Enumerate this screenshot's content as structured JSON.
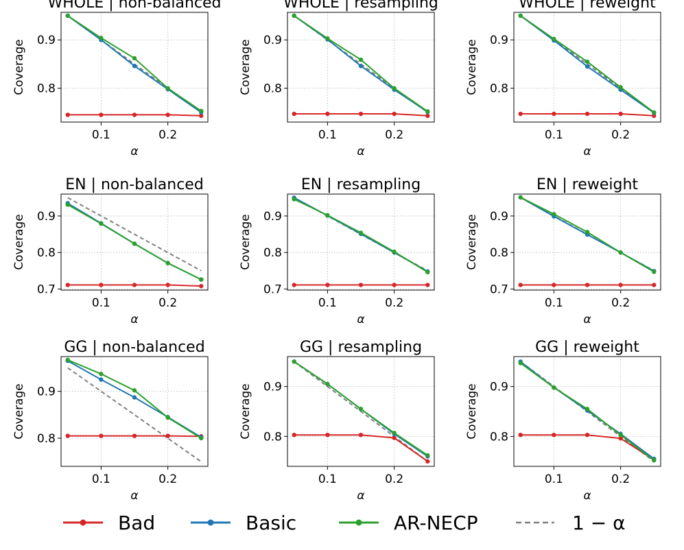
{
  "figure": {
    "legend": [
      {
        "key": "bad",
        "label": "Bad",
        "color": "#d62728",
        "style": "solid-marker"
      },
      {
        "key": "basic",
        "label": "Basic",
        "color": "#1f77b4",
        "style": "solid-marker"
      },
      {
        "key": "ar_necp",
        "label": "AR-NECP",
        "color": "#2ca02c",
        "style": "solid-marker"
      },
      {
        "key": "one_minus_alpha",
        "label": "1 − α",
        "color": "#7f7f7f",
        "style": "dashed"
      }
    ],
    "legend_placement": "bottom-center",
    "grid": "dotted"
  },
  "chart_data": [
    {
      "type": "line",
      "title": "WHOLE | non-balanced",
      "xlabel": "α",
      "ylabel": "Coverage",
      "x": [
        0.05,
        0.1,
        0.15,
        0.2,
        0.25
      ],
      "xlim": [
        0.04,
        0.26
      ],
      "ylim": [
        0.73,
        0.957
      ],
      "xticks": [
        "0.1",
        "0.2"
      ],
      "yticks": [
        "0.8",
        "0.9"
      ],
      "series": [
        {
          "name": "Bad",
          "values": [
            0.745,
            0.745,
            0.745,
            0.745,
            0.743
          ]
        },
        {
          "name": "Basic",
          "values": [
            0.95,
            0.9,
            0.846,
            0.798,
            0.75
          ]
        },
        {
          "name": "AR-NECP",
          "values": [
            0.95,
            0.904,
            0.862,
            0.8,
            0.753
          ]
        },
        {
          "name": "1 − α",
          "values": [
            0.95,
            0.9,
            0.85,
            0.8,
            0.75
          ]
        }
      ]
    },
    {
      "type": "line",
      "title": "WHOLE | resampling",
      "xlabel": "α",
      "ylabel": "Coverage",
      "x": [
        0.05,
        0.1,
        0.15,
        0.2,
        0.25
      ],
      "xlim": [
        0.04,
        0.26
      ],
      "ylim": [
        0.73,
        0.957
      ],
      "xticks": [
        "0.1",
        "0.2"
      ],
      "yticks": [
        "0.8",
        "0.9"
      ],
      "series": [
        {
          "name": "Bad",
          "values": [
            0.747,
            0.747,
            0.747,
            0.747,
            0.743
          ]
        },
        {
          "name": "Basic",
          "values": [
            0.95,
            0.901,
            0.846,
            0.797,
            0.751
          ]
        },
        {
          "name": "AR-NECP",
          "values": [
            0.95,
            0.903,
            0.859,
            0.8,
            0.752
          ]
        },
        {
          "name": "1 − α",
          "values": [
            0.95,
            0.9,
            0.85,
            0.8,
            0.75
          ]
        }
      ]
    },
    {
      "type": "line",
      "title": "WHOLE | reweight",
      "xlabel": "α",
      "ylabel": "Coverage",
      "x": [
        0.05,
        0.1,
        0.15,
        0.2,
        0.25
      ],
      "xlim": [
        0.04,
        0.26
      ],
      "ylim": [
        0.73,
        0.957
      ],
      "xticks": [
        "0.1",
        "0.2"
      ],
      "yticks": [
        "0.8",
        "0.9"
      ],
      "series": [
        {
          "name": "Bad",
          "values": [
            0.747,
            0.747,
            0.747,
            0.747,
            0.743
          ]
        },
        {
          "name": "Basic",
          "values": [
            0.95,
            0.899,
            0.845,
            0.797,
            0.749
          ]
        },
        {
          "name": "AR-NECP",
          "values": [
            0.95,
            0.902,
            0.855,
            0.802,
            0.75
          ]
        },
        {
          "name": "1 − α",
          "values": [
            0.95,
            0.9,
            0.85,
            0.8,
            0.75
          ]
        }
      ]
    },
    {
      "type": "line",
      "title": "EN | non-balanced",
      "xlabel": "α",
      "ylabel": "Coverage",
      "x": [
        0.05,
        0.1,
        0.15,
        0.2,
        0.25
      ],
      "xlim": [
        0.04,
        0.26
      ],
      "ylim": [
        0.697,
        0.96
      ],
      "xticks": [
        "0.1",
        "0.2"
      ],
      "yticks": [
        "0.7",
        "0.8",
        "0.9"
      ],
      "series": [
        {
          "name": "Bad",
          "values": [
            0.711,
            0.711,
            0.711,
            0.711,
            0.708
          ]
        },
        {
          "name": "Basic",
          "values": [
            0.935,
            0.88,
            0.824,
            0.771,
            0.726
          ]
        },
        {
          "name": "AR-NECP",
          "values": [
            0.931,
            0.879,
            0.824,
            0.771,
            0.726
          ]
        },
        {
          "name": "1 − α",
          "values": [
            0.95,
            0.9,
            0.85,
            0.8,
            0.75
          ]
        }
      ]
    },
    {
      "type": "line",
      "title": "EN | resampling",
      "xlabel": "α",
      "ylabel": "Coverage",
      "x": [
        0.05,
        0.1,
        0.15,
        0.2,
        0.25
      ],
      "xlim": [
        0.04,
        0.26
      ],
      "ylim": [
        0.697,
        0.96
      ],
      "xticks": [
        "0.1",
        "0.2"
      ],
      "yticks": [
        "0.7",
        "0.8",
        "0.9"
      ],
      "series": [
        {
          "name": "Bad",
          "values": [
            0.711,
            0.711,
            0.711,
            0.711,
            0.711
          ]
        },
        {
          "name": "Basic",
          "values": [
            0.95,
            0.901,
            0.851,
            0.8,
            0.748
          ]
        },
        {
          "name": "AR-NECP",
          "values": [
            0.946,
            0.902,
            0.854,
            0.802,
            0.746
          ]
        },
        {
          "name": "1 − α",
          "values": [
            0.95,
            0.9,
            0.85,
            0.8,
            0.75
          ]
        }
      ]
    },
    {
      "type": "line",
      "title": "EN | reweight",
      "xlabel": "α",
      "ylabel": "Coverage",
      "x": [
        0.05,
        0.1,
        0.15,
        0.2,
        0.25
      ],
      "xlim": [
        0.04,
        0.26
      ],
      "ylim": [
        0.697,
        0.96
      ],
      "xticks": [
        "0.1",
        "0.2"
      ],
      "yticks": [
        "0.7",
        "0.8",
        "0.9"
      ],
      "series": [
        {
          "name": "Bad",
          "values": [
            0.711,
            0.711,
            0.711,
            0.711,
            0.711
          ]
        },
        {
          "name": "Basic",
          "values": [
            0.951,
            0.899,
            0.849,
            0.8,
            0.749
          ]
        },
        {
          "name": "AR-NECP",
          "values": [
            0.951,
            0.905,
            0.856,
            0.8,
            0.747
          ]
        },
        {
          "name": "1 − α",
          "values": [
            0.95,
            0.9,
            0.85,
            0.8,
            0.75
          ]
        }
      ]
    },
    {
      "type": "line",
      "title": "GG | non-balanced",
      "xlabel": "α",
      "ylabel": "Coverage",
      "x": [
        0.05,
        0.1,
        0.15,
        0.2,
        0.25
      ],
      "xlim": [
        0.04,
        0.26
      ],
      "ylim": [
        0.74,
        0.974
      ],
      "xticks": [
        "0.1",
        "0.2"
      ],
      "yticks": [
        "0.8",
        "0.9"
      ],
      "series": [
        {
          "name": "Bad",
          "values": [
            0.805,
            0.805,
            0.805,
            0.805,
            0.804
          ]
        },
        {
          "name": "Basic",
          "values": [
            0.965,
            0.925,
            0.887,
            0.845,
            0.802
          ]
        },
        {
          "name": "AR-NECP",
          "values": [
            0.967,
            0.937,
            0.902,
            0.844,
            0.8
          ]
        },
        {
          "name": "1 − α",
          "values": [
            0.95,
            0.9,
            0.85,
            0.8,
            0.75
          ]
        }
      ]
    },
    {
      "type": "line",
      "title": "GG | resampling",
      "xlabel": "α",
      "ylabel": "Coverage",
      "x": [
        0.05,
        0.1,
        0.15,
        0.2,
        0.25
      ],
      "xlim": [
        0.04,
        0.26
      ],
      "ylim": [
        0.74,
        0.96
      ],
      "xticks": [
        "0.1",
        "0.2"
      ],
      "yticks": [
        "0.8",
        "0.9"
      ],
      "series": [
        {
          "name": "Bad",
          "values": [
            0.803,
            0.803,
            0.803,
            0.797,
            0.75
          ]
        },
        {
          "name": "Basic",
          "values": [
            0.95,
            0.905,
            0.855,
            0.805,
            0.76
          ]
        },
        {
          "name": "AR-NECP",
          "values": [
            0.95,
            0.905,
            0.855,
            0.807,
            0.762
          ]
        },
        {
          "name": "1 − α",
          "values": [
            0.95,
            0.9,
            0.85,
            0.8,
            0.75
          ]
        }
      ]
    },
    {
      "type": "line",
      "title": "GG | reweight",
      "xlabel": "α",
      "ylabel": "Coverage",
      "x": [
        0.05,
        0.1,
        0.15,
        0.2,
        0.25
      ],
      "xlim": [
        0.04,
        0.26
      ],
      "ylim": [
        0.74,
        0.96
      ],
      "xticks": [
        "0.1",
        "0.2"
      ],
      "yticks": [
        "0.8",
        "0.9"
      ],
      "series": [
        {
          "name": "Bad",
          "values": [
            0.803,
            0.803,
            0.803,
            0.796,
            0.753
          ]
        },
        {
          "name": "Basic",
          "values": [
            0.95,
            0.898,
            0.852,
            0.805,
            0.755
          ]
        },
        {
          "name": "AR-NECP",
          "values": [
            0.947,
            0.898,
            0.855,
            0.803,
            0.752
          ]
        },
        {
          "name": "1 − α",
          "values": [
            0.95,
            0.9,
            0.85,
            0.8,
            0.75
          ]
        }
      ]
    }
  ]
}
